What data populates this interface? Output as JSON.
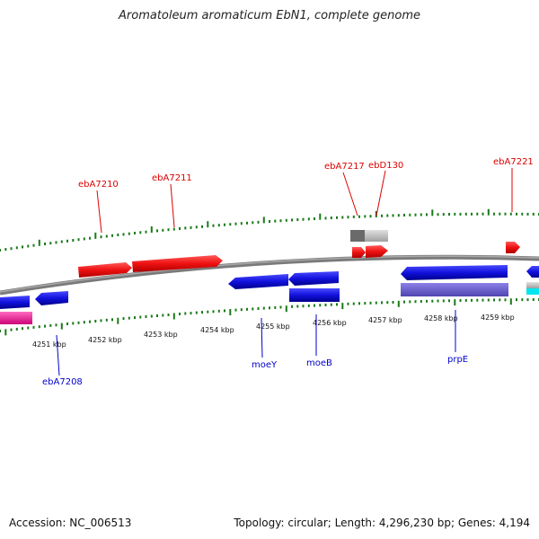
{
  "header": {
    "title": "Aromatoleum aromaticum EbN1, complete genome"
  },
  "footer": {
    "accession": "Accession: NC_006513",
    "topology": "Topology: circular; Length: 4,296,230 bp; Genes: 4,194"
  },
  "colors": {
    "forward_gene": "#ee1111",
    "reverse_gene": "#1111dd",
    "pseudo_gene": "#aaaaaa",
    "rna_gene": "#6a5acd",
    "magenta_gene": "#ee2299",
    "cyan_gene": "#00e5ee",
    "backbone": "#808080",
    "tick": "#1a7a1a",
    "forward_label": "#dd0000",
    "reverse_label": "#0000cc"
  },
  "scale": {
    "ticks": [
      "4251 kbp",
      "4252 kbp",
      "4253 kbp",
      "4254 kbp",
      "4255 kbp",
      "4256 kbp",
      "4257 kbp",
      "4258 kbp",
      "4259 kbp"
    ]
  },
  "labels": {
    "top": [
      "ebA7210",
      "ebA7211",
      "ebA7217",
      "ebD130",
      "ebA7221"
    ],
    "bottom": [
      "ebA7208",
      "moeY",
      "moeB",
      "prpE"
    ]
  }
}
